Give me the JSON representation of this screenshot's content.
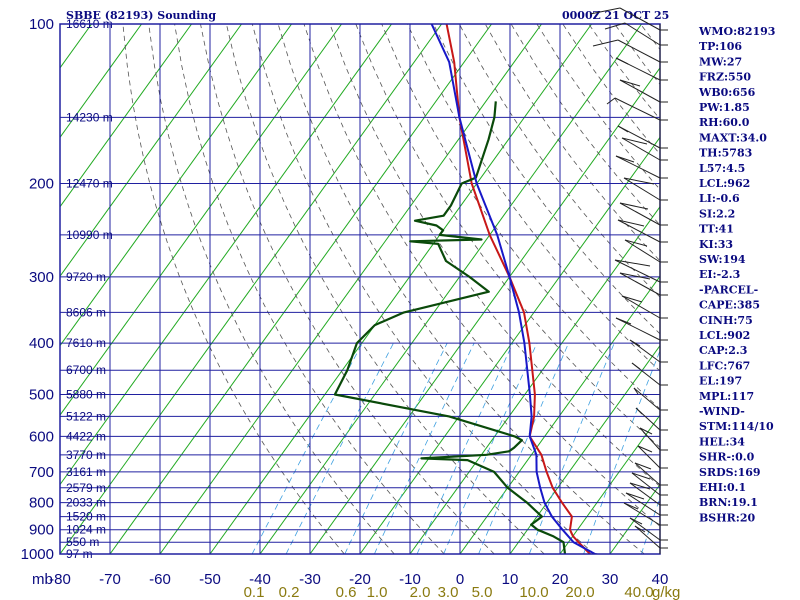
{
  "title_left": "SBBE (82193) Sounding",
  "title_right": "0000Z 21 OCT 25",
  "colors": {
    "frame": "#2020a0",
    "isotherm": "#22aa22",
    "dry_adiabat": "#555555",
    "mixing_ratio": "#3fa0e0",
    "temperature": "#c81818",
    "dewpoint": "#0a4a0a",
    "parcel": "#1818c8",
    "text": "#0a0a80",
    "mixing_label": "#8a7a10"
  },
  "chart_data": {
    "type": "skew-t log-p sounding",
    "yaxis": {
      "unit_label": "mb",
      "ticks": [
        100,
        200,
        300,
        400,
        500,
        600,
        700,
        800,
        900,
        1000
      ],
      "range": [
        1000,
        100
      ]
    },
    "xaxis": {
      "ticks": [
        "-80",
        "-70",
        "-60",
        "-50",
        "-40",
        "-30",
        "-20",
        "-10",
        "0",
        "10",
        "20",
        "30",
        "40"
      ],
      "range": [
        -80,
        40
      ]
    },
    "mixing_ratio_labels": [
      "0.1",
      "0.2",
      "0.6",
      "1.0",
      "2.0",
      "3.0",
      "5.0",
      "10.0",
      "20.0",
      "40.0"
    ],
    "mixing_ratio_unit": "g/kg",
    "height_labels": [
      {
        "p": 100,
        "label": "16610 m"
      },
      {
        "p": 150,
        "label": "14230 m"
      },
      {
        "p": 200,
        "label": "12470 m"
      },
      {
        "p": 250,
        "label": "10990 m"
      },
      {
        "p": 300,
        "label": "9720 m"
      },
      {
        "p": 350,
        "label": "8606 m"
      },
      {
        "p": 400,
        "label": "7610 m"
      },
      {
        "p": 450,
        "label": "6700 m"
      },
      {
        "p": 500,
        "label": "5880 m"
      },
      {
        "p": 550,
        "label": "5122 m"
      },
      {
        "p": 600,
        "label": "4422 m"
      },
      {
        "p": 650,
        "label": "3770 m"
      },
      {
        "p": 700,
        "label": "3161 m"
      },
      {
        "p": 750,
        "label": "2579 m"
      },
      {
        "p": 800,
        "label": "2033 m"
      },
      {
        "p": 850,
        "label": "1520 m"
      },
      {
        "p": 900,
        "label": "1024 m"
      },
      {
        "p": 950,
        "label": "550 m"
      },
      {
        "p": 1000,
        "label": "97 m"
      }
    ],
    "series": [
      {
        "key": "temperature",
        "points": [
          [
            1004,
            26.5
          ],
          [
            1000,
            26
          ],
          [
            950,
            22
          ],
          [
            925,
            20
          ],
          [
            900,
            18.5
          ],
          [
            850,
            17
          ],
          [
            800,
            13
          ],
          [
            750,
            9
          ],
          [
            700,
            5.5
          ],
          [
            650,
            2
          ],
          [
            600,
            -3
          ],
          [
            550,
            -5
          ],
          [
            500,
            -8
          ],
          [
            450,
            -12
          ],
          [
            400,
            -16.5
          ],
          [
            350,
            -22
          ],
          [
            300,
            -30
          ],
          [
            250,
            -40
          ],
          [
            200,
            -51
          ],
          [
            150,
            -63
          ],
          [
            118,
            -72
          ],
          [
            100,
            -79
          ]
        ]
      },
      {
        "key": "dewpoint",
        "points": [
          [
            1004,
            22
          ],
          [
            1000,
            21
          ],
          [
            950,
            19
          ],
          [
            925,
            16
          ],
          [
            900,
            12
          ],
          [
            880,
            10
          ],
          [
            850,
            11
          ],
          [
            800,
            6
          ],
          [
            750,
            0
          ],
          [
            700,
            -5
          ],
          [
            665,
            -12
          ],
          [
            660,
            -21.5
          ],
          [
            650,
            -9
          ],
          [
            640,
            -5
          ],
          [
            630,
            -4.5
          ],
          [
            610,
            -4
          ],
          [
            600,
            -6
          ],
          [
            550,
            -22
          ],
          [
            500,
            -48
          ],
          [
            450,
            -49
          ],
          [
            400,
            -51
          ],
          [
            370,
            -50
          ],
          [
            350,
            -46
          ],
          [
            320,
            -32
          ],
          [
            300,
            -38
          ],
          [
            280,
            -45
          ],
          [
            260,
            -49
          ],
          [
            257,
            -55
          ],
          [
            255,
            -41
          ],
          [
            250,
            -50
          ],
          [
            245,
            -50
          ],
          [
            240,
            -52
          ],
          [
            235,
            -57
          ],
          [
            230,
            -52
          ],
          [
            220,
            -52
          ],
          [
            200,
            -53
          ],
          [
            195,
            -51
          ],
          [
            165,
            -54
          ],
          [
            150,
            -56
          ],
          [
            140,
            -58
          ]
        ]
      },
      {
        "key": "parcel",
        "points": [
          [
            1004,
            28
          ],
          [
            1000,
            27
          ],
          [
            950,
            21
          ],
          [
            900,
            17
          ],
          [
            850,
            13
          ],
          [
            800,
            9.5
          ],
          [
            750,
            6.5
          ],
          [
            700,
            3.5
          ],
          [
            650,
            1
          ],
          [
            600,
            -3
          ],
          [
            550,
            -5.5
          ],
          [
            500,
            -9
          ],
          [
            450,
            -13
          ],
          [
            400,
            -17.5
          ],
          [
            350,
            -23
          ],
          [
            300,
            -30
          ],
          [
            250,
            -38.5
          ],
          [
            200,
            -50
          ],
          [
            150,
            -63
          ],
          [
            118,
            -73
          ],
          [
            100,
            -82
          ]
        ]
      }
    ]
  },
  "indices": [
    "WMO:82193",
    "TP:106",
    "MW:27",
    "FRZ:550",
    "WB0:656",
    "PW:1.85",
    "RH:60.0",
    "MAXT:34.0",
    "TH:5783",
    "L57:4.5",
    "LCL:962",
    "LI:-0.6",
    "SI:2.2",
    "TT:41",
    "KI:33",
    "SW:194",
    "EI:-2.3",
    "-PARCEL-",
    "CAPE:385",
    "CINH:75",
    "LCL:902",
    "CAP:2.3",
    "LFC:767",
    "EL:197",
    "MPL:117",
    "-WIND-",
    "STM:114/10",
    "HEL:34",
    "SHR-:0.0",
    "SRDS:169",
    "EHI:0.1",
    "BRN:19.1",
    "BSHR:20"
  ]
}
